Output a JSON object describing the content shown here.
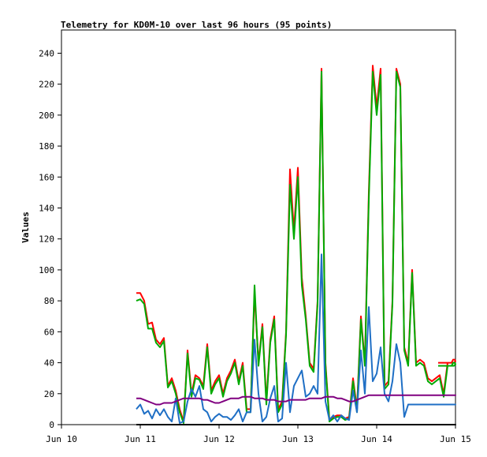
{
  "chart_data": {
    "type": "line",
    "title": "Telemetry for KD0M-10 over last 96 hours (95 points)",
    "xlabel": "",
    "ylabel": "Values",
    "x_ticks": [
      "Jun 10",
      "Jun 11",
      "Jun 12",
      "Jun 13",
      "Jun 14",
      "Jun 15"
    ],
    "x_range": [
      0,
      5
    ],
    "ylim": [
      0,
      255
    ],
    "y_ticks": [
      0,
      20,
      40,
      60,
      80,
      100,
      120,
      140,
      160,
      180,
      200,
      220,
      240
    ],
    "grid": false,
    "legend": "none",
    "x": [
      0.95,
      1.0,
      1.05,
      1.1,
      1.15,
      1.2,
      1.25,
      1.3,
      1.35,
      1.4,
      1.45,
      1.5,
      1.55,
      1.6,
      1.65,
      1.7,
      1.75,
      1.8,
      1.85,
      1.9,
      1.95,
      2.0,
      2.05,
      2.1,
      2.15,
      2.2,
      2.25,
      2.3,
      2.35,
      2.4,
      2.45,
      2.5,
      2.55,
      2.6,
      2.65,
      2.7,
      2.75,
      2.8,
      2.85,
      2.9,
      2.95,
      3.0,
      3.05,
      3.1,
      3.15,
      3.2,
      3.25,
      3.3,
      3.35,
      3.4,
      3.45,
      3.5,
      3.55,
      3.6,
      3.65,
      3.7,
      3.75,
      3.8,
      3.85,
      3.9,
      3.95,
      4.0,
      4.05,
      4.1,
      4.15,
      4.2,
      4.25,
      4.3,
      4.35,
      4.4,
      4.45,
      4.5,
      4.55,
      4.6,
      4.65,
      4.7,
      4.75,
      4.8,
      4.85,
      4.9,
      4.95,
      4.97,
      4.99,
      5.0,
      4.98,
      4.96,
      4.94,
      4.92,
      4.9,
      4.88,
      4.86,
      4.84,
      4.82,
      4.8,
      4.78
    ],
    "series": [
      {
        "color": "#ff0000",
        "values": [
          85,
          85,
          80,
          65,
          66,
          55,
          52,
          56,
          25,
          30,
          22,
          10,
          2,
          48,
          20,
          32,
          30,
          25,
          52,
          22,
          28,
          32,
          20,
          30,
          35,
          42,
          28,
          40,
          10,
          10,
          85,
          40,
          65,
          15,
          55,
          70,
          10,
          15,
          60,
          165,
          125,
          166,
          95,
          70,
          40,
          36,
          80,
          230,
          40,
          3,
          5,
          6,
          6,
          4,
          5,
          30,
          10,
          70,
          40,
          150,
          232,
          205,
          230,
          25,
          28,
          80,
          230,
          220,
          50,
          40,
          100,
          40,
          42,
          40,
          30,
          28,
          30,
          32,
          20,
          40,
          40,
          42,
          42,
          41,
          40,
          40,
          40,
          40,
          40,
          40,
          40,
          40,
          40,
          40,
          40
        ]
      },
      {
        "color": "#00aa00",
        "values": [
          80,
          81,
          78,
          62,
          62,
          53,
          50,
          54,
          24,
          28,
          20,
          8,
          1,
          46,
          18,
          30,
          29,
          23,
          50,
          20,
          26,
          30,
          18,
          28,
          33,
          40,
          26,
          38,
          8,
          8,
          90,
          38,
          63,
          13,
          53,
          68,
          8,
          13,
          58,
          155,
          120,
          160,
          90,
          68,
          38,
          34,
          78,
          228,
          38,
          2,
          4,
          5,
          5,
          3,
          4,
          28,
          8,
          68,
          38,
          145,
          228,
          200,
          226,
          23,
          26,
          78,
          228,
          218,
          48,
          38,
          98,
          38,
          40,
          38,
          28,
          26,
          28,
          30,
          18,
          38,
          38,
          40,
          40,
          39,
          38,
          38,
          38,
          38,
          38,
          38,
          38,
          38,
          38,
          38,
          38
        ]
      },
      {
        "color": "#1f6fc5",
        "values": [
          10,
          13,
          7,
          9,
          4,
          10,
          6,
          10,
          5,
          2,
          17,
          1,
          2,
          15,
          23,
          18,
          25,
          10,
          8,
          2,
          5,
          7,
          5,
          5,
          3,
          6,
          10,
          2,
          8,
          8,
          55,
          20,
          2,
          5,
          17,
          25,
          2,
          4,
          40,
          8,
          25,
          30,
          35,
          18,
          20,
          25,
          20,
          110,
          15,
          3,
          6,
          2,
          6,
          4,
          3,
          22,
          8,
          48,
          20,
          76,
          28,
          33,
          50,
          20,
          15,
          28,
          52,
          40,
          5,
          13,
          13,
          13,
          13,
          13,
          13,
          13,
          13,
          13,
          13,
          13,
          13,
          13,
          13,
          13,
          13,
          13,
          13,
          13,
          13,
          13,
          13,
          13,
          13,
          13,
          13
        ]
      },
      {
        "color": "#800080",
        "values": [
          17,
          17,
          16,
          15,
          14,
          13,
          13,
          14,
          14,
          14,
          15,
          16,
          17,
          17,
          17,
          17,
          17,
          16,
          16,
          15,
          14,
          14,
          15,
          16,
          17,
          17,
          17,
          18,
          18,
          18,
          17,
          17,
          17,
          16,
          16,
          16,
          15,
          15,
          15,
          16,
          16,
          16,
          16,
          16,
          17,
          17,
          17,
          17,
          18,
          18,
          18,
          17,
          17,
          16,
          15,
          15,
          16,
          17,
          18,
          19,
          19,
          19,
          19,
          19,
          19,
          19,
          19,
          19,
          19,
          19,
          19,
          19,
          19,
          19,
          19,
          19,
          19,
          19,
          19,
          19,
          19,
          19,
          19,
          19,
          19,
          19,
          19,
          19,
          19,
          19,
          19,
          19,
          19,
          19,
          19
        ]
      },
      {
        "color": "#000000",
        "values": [
          0,
          0,
          0,
          0,
          0,
          0,
          0,
          0,
          0,
          0,
          0,
          0,
          0,
          0,
          0,
          0,
          0,
          0,
          0,
          0,
          0,
          0,
          0,
          0,
          0,
          0,
          0,
          0,
          0,
          0,
          0,
          0,
          0,
          0,
          0,
          0,
          0,
          0,
          0,
          0,
          0,
          0,
          0,
          0,
          0,
          0,
          0,
          0,
          0,
          0,
          0,
          0,
          0,
          0,
          0,
          0,
          0,
          0,
          0,
          0,
          0,
          0,
          0,
          0,
          0,
          0,
          0,
          0,
          0,
          0,
          0,
          0,
          0,
          0,
          0,
          0,
          0,
          0,
          0,
          0,
          0,
          0,
          0,
          0,
          0,
          0,
          0,
          0,
          0,
          0,
          0,
          0,
          0,
          0,
          0
        ]
      }
    ]
  }
}
